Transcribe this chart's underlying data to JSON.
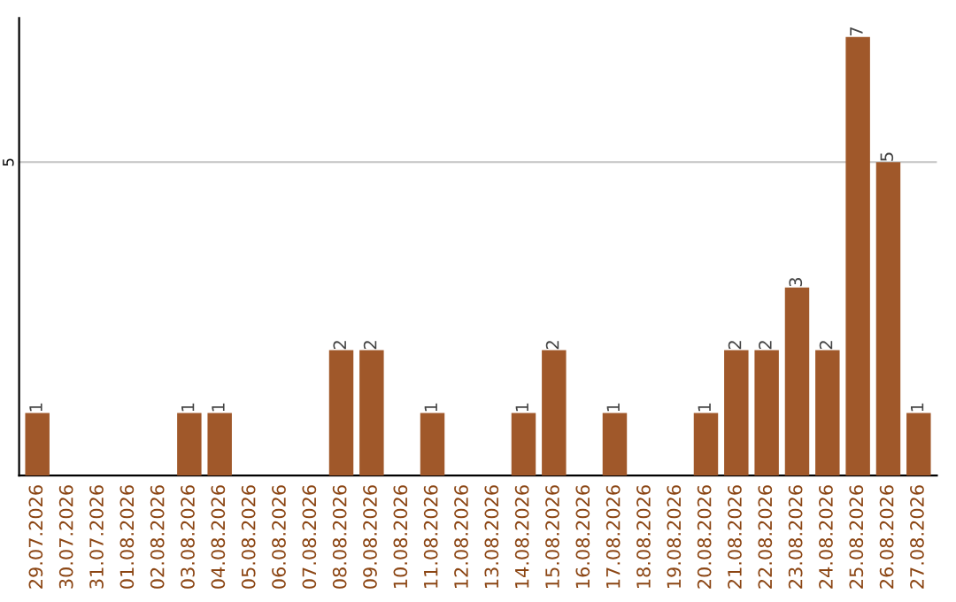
{
  "chart_data": {
    "type": "bar",
    "categories": [
      "29.07.2026",
      "30.07.2026",
      "31.07.2026",
      "01.08.2026",
      "02.08.2026",
      "03.08.2026",
      "04.08.2026",
      "05.08.2026",
      "06.08.2026",
      "07.08.2026",
      "08.08.2026",
      "09.08.2026",
      "10.08.2026",
      "11.08.2026",
      "12.08.2026",
      "13.08.2026",
      "14.08.2026",
      "15.08.2026",
      "16.08.2026",
      "17.08.2026",
      "18.08.2026",
      "19.08.2026",
      "20.08.2026",
      "21.08.2026",
      "22.08.2026",
      "23.08.2026",
      "24.08.2026",
      "25.08.2026",
      "26.08.2026",
      "27.08.2026"
    ],
    "values": [
      1,
      0,
      0,
      0,
      0,
      1,
      1,
      0,
      0,
      0,
      2,
      2,
      0,
      1,
      0,
      0,
      1,
      2,
      0,
      1,
      0,
      0,
      1,
      2,
      2,
      3,
      2,
      7,
      5,
      1
    ],
    "value_labels": [
      "1",
      null,
      null,
      null,
      null,
      "1",
      "1",
      null,
      null,
      null,
      "2",
      "2",
      null,
      "1",
      null,
      null,
      "1",
      "2",
      null,
      "1",
      null,
      null,
      "1",
      "2",
      "2",
      "3",
      "2",
      "7",
      "5",
      "1"
    ],
    "color": "#a0582a",
    "ylim": [
      0,
      7.3
    ],
    "yticks": [
      5
    ],
    "grid": "y"
  }
}
